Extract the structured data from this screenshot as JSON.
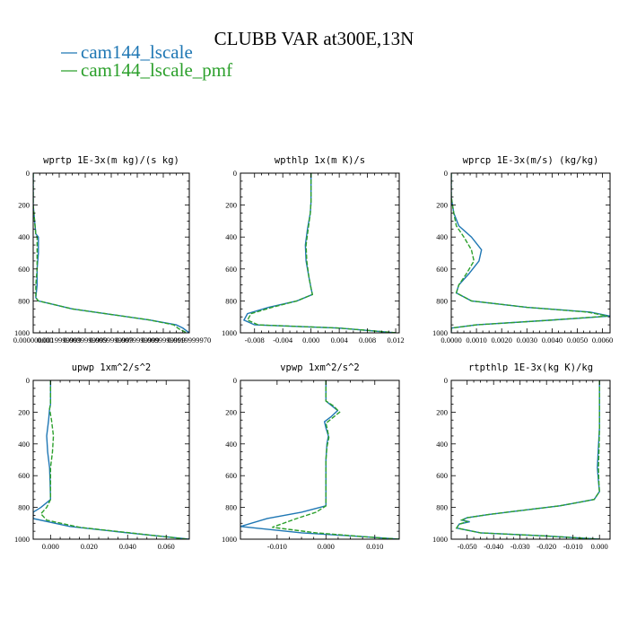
{
  "title": "CLUBB VAR at300E,13N",
  "colors": {
    "series1": "#1f77b4",
    "series2": "#2ca02c"
  },
  "legend": [
    {
      "name": "cam144_lscale",
      "color": "#1f77b4",
      "dash": "solid"
    },
    {
      "name": "cam144_lscale_pmf",
      "color": "#2ca02c",
      "dash": "dashed"
    }
  ],
  "chart_data": [
    {
      "type": "line",
      "title": "wprtp  1E-3x(m kg)/(s kg)",
      "xlim": [
        0,
        0.012
      ],
      "ylim": [
        0,
        1000
      ],
      "y_inverted": true,
      "xticks": [
        0.0,
        0.002,
        0.004,
        0.006,
        0.008,
        0.01,
        0.012
      ],
      "xticklabels": [
        "0.000000000",
        "0.0019999999",
        "0.0039999999",
        "0.0059999999",
        "0.0079999999",
        "0.0099999999",
        "0.0119999970"
      ],
      "yticks": [
        0,
        200,
        400,
        600,
        800,
        1000
      ],
      "series": [
        {
          "name": "cam144_lscale",
          "points": [
            [
              0,
              0
            ],
            [
              0,
              200
            ],
            [
              0.0002,
              380
            ],
            [
              0.0004,
              400
            ],
            [
              0.0004,
              500
            ],
            [
              0.0003,
              600
            ],
            [
              0.0003,
              700
            ],
            [
              0.0002,
              780
            ],
            [
              0.0004,
              800
            ],
            [
              0.003,
              850
            ],
            [
              0.006,
              885
            ],
            [
              0.009,
              920
            ],
            [
              0.011,
              950
            ],
            [
              0.0115,
              970
            ],
            [
              0.012,
              1000
            ]
          ]
        },
        {
          "name": "cam144_lscale_pmf",
          "points": [
            [
              0,
              0
            ],
            [
              0,
              200
            ],
            [
              0.0002,
              380
            ],
            [
              0.0003,
              400
            ],
            [
              0.0003,
              500
            ],
            [
              0.0003,
              600
            ],
            [
              0.0002,
              700
            ],
            [
              0.0002,
              780
            ],
            [
              0.0004,
              800
            ],
            [
              0.003,
              850
            ],
            [
              0.006,
              885
            ],
            [
              0.009,
              920
            ],
            [
              0.0108,
              950
            ],
            [
              0.0112,
              975
            ],
            [
              0.0118,
              1000
            ]
          ]
        }
      ]
    },
    {
      "type": "line",
      "title": "wpthlp  1x(m K)/s",
      "xlim": [
        -0.01,
        0.0125
      ],
      "ylim": [
        0,
        1000
      ],
      "y_inverted": true,
      "xticks": [
        -0.008,
        -0.004,
        0.0,
        0.004,
        0.008,
        0.012
      ],
      "xticklabels": [
        "-0.008",
        "-0.004",
        "0.000",
        "0.004",
        "0.008",
        "0.012"
      ],
      "yticks": [
        0,
        200,
        400,
        600,
        800,
        1000
      ],
      "series": [
        {
          "name": "cam144_lscale",
          "points": [
            [
              0,
              0
            ],
            [
              0,
              180
            ],
            [
              -0.0001,
              250
            ],
            [
              -0.0005,
              350
            ],
            [
              -0.0008,
              450
            ],
            [
              -0.0007,
              550
            ],
            [
              -0.0003,
              650
            ],
            [
              0,
              720
            ],
            [
              0.0002,
              760
            ],
            [
              -0.002,
              800
            ],
            [
              -0.006,
              840
            ],
            [
              -0.009,
              880
            ],
            [
              -0.0095,
              920
            ],
            [
              -0.008,
              950
            ],
            [
              0.004,
              970
            ],
            [
              0.012,
              1000
            ]
          ]
        },
        {
          "name": "cam144_lscale_pmf",
          "points": [
            [
              0,
              0
            ],
            [
              0,
              180
            ],
            [
              -0.0001,
              250
            ],
            [
              -0.0004,
              350
            ],
            [
              -0.0007,
              450
            ],
            [
              -0.0006,
              550
            ],
            [
              -0.0003,
              650
            ],
            [
              0,
              720
            ],
            [
              0.0002,
              760
            ],
            [
              -0.002,
              800
            ],
            [
              -0.0055,
              840
            ],
            [
              -0.0085,
              880
            ],
            [
              -0.009,
              920
            ],
            [
              -0.0075,
              950
            ],
            [
              0.004,
              970
            ],
            [
              0.0122,
              1000
            ]
          ]
        }
      ]
    },
    {
      "type": "line",
      "title": "wprcp  1E-3x(m/s) (kg/kg)",
      "xlim": [
        0,
        0.0063
      ],
      "ylim": [
        0,
        1000
      ],
      "y_inverted": true,
      "xticks": [
        0.0,
        0.001,
        0.002,
        0.003,
        0.004,
        0.005,
        0.006
      ],
      "xticklabels": [
        "0.0000",
        "0.0010",
        "0.0020",
        "0.0030",
        "0.0040",
        "0.0050",
        "0.0060"
      ],
      "yticks": [
        0,
        200,
        400,
        600,
        800,
        1000
      ],
      "series": [
        {
          "name": "cam144_lscale",
          "points": [
            [
              0,
              0
            ],
            [
              0,
              150
            ],
            [
              0.0001,
              250
            ],
            [
              0.0003,
              330
            ],
            [
              0.0008,
              400
            ],
            [
              0.0012,
              480
            ],
            [
              0.0011,
              550
            ],
            [
              0.0007,
              630
            ],
            [
              0.0003,
              700
            ],
            [
              0.0002,
              750
            ],
            [
              0.0008,
              800
            ],
            [
              0.003,
              840
            ],
            [
              0.0055,
              870
            ],
            [
              0.0063,
              895
            ],
            [
              0.004,
              920
            ],
            [
              0.001,
              950
            ],
            [
              0,
              970
            ],
            [
              0,
              1000
            ]
          ]
        },
        {
          "name": "cam144_lscale_pmf",
          "points": [
            [
              0,
              0
            ],
            [
              0,
              150
            ],
            [
              0.0001,
              250
            ],
            [
              0.0002,
              330
            ],
            [
              0.0005,
              400
            ],
            [
              0.0008,
              480
            ],
            [
              0.0009,
              550
            ],
            [
              0.0006,
              630
            ],
            [
              0.0003,
              700
            ],
            [
              0.0002,
              750
            ],
            [
              0.0008,
              800
            ],
            [
              0.003,
              840
            ],
            [
              0.0054,
              870
            ],
            [
              0.0062,
              895
            ],
            [
              0.004,
              920
            ],
            [
              0.001,
              950
            ],
            [
              0,
              970
            ],
            [
              0,
              1000
            ]
          ]
        }
      ]
    },
    {
      "type": "line",
      "title": "upwp  1xm^2/s^2",
      "xlim": [
        -0.009,
        0.072
      ],
      "ylim": [
        0,
        1000
      ],
      "y_inverted": true,
      "xticks": [
        0.0,
        0.02,
        0.04,
        0.06
      ],
      "xticklabels": [
        "0.000",
        "0.020",
        "0.040",
        "0.060"
      ],
      "yticks": [
        0,
        200,
        400,
        600,
        800,
        1000
      ],
      "series": [
        {
          "name": "cam144_lscale",
          "points": [
            [
              0,
              0
            ],
            [
              0,
              150
            ],
            [
              -0.0005,
              180
            ],
            [
              -0.001,
              250
            ],
            [
              -0.002,
              350
            ],
            [
              -0.0015,
              450
            ],
            [
              -0.0005,
              550
            ],
            [
              -0.0002,
              650
            ],
            [
              0,
              750
            ],
            [
              -0.005,
              800
            ],
            [
              -0.009,
              830
            ],
            [
              -0.009,
              870
            ],
            [
              0.01,
              920
            ],
            [
              0.04,
              960
            ],
            [
              0.072,
              1000
            ]
          ]
        },
        {
          "name": "cam144_lscale_pmf",
          "points": [
            [
              0,
              0
            ],
            [
              0,
              150
            ],
            [
              -0.0005,
              180
            ],
            [
              0.0005,
              250
            ],
            [
              0.0015,
              350
            ],
            [
              0.001,
              450
            ],
            [
              0,
              550
            ],
            [
              0,
              650
            ],
            [
              0,
              750
            ],
            [
              -0.002,
              800
            ],
            [
              -0.005,
              840
            ],
            [
              -0.002,
              880
            ],
            [
              0.015,
              925
            ],
            [
              0.045,
              965
            ],
            [
              0.071,
              1000
            ]
          ]
        }
      ]
    },
    {
      "type": "line",
      "title": "vpwp  1xm^2/s^2",
      "xlim": [
        -0.0175,
        0.015
      ],
      "ylim": [
        0,
        1000
      ],
      "y_inverted": true,
      "xticks": [
        -0.01,
        0.0,
        0.01
      ],
      "xticklabels": [
        "-0.010",
        "0.000",
        "0.010"
      ],
      "yticks": [
        0,
        200,
        400,
        600,
        800,
        1000
      ],
      "series": [
        {
          "name": "cam144_lscale",
          "points": [
            [
              0,
              0
            ],
            [
              0,
              130
            ],
            [
              0.0012,
              160
            ],
            [
              0.0024,
              190
            ],
            [
              0.001,
              230
            ],
            [
              -0.0003,
              260
            ],
            [
              0,
              300
            ],
            [
              0.0005,
              350
            ],
            [
              0.0002,
              400
            ],
            [
              0,
              500
            ],
            [
              0,
              700
            ],
            [
              0,
              790
            ],
            [
              -0.005,
              830
            ],
            [
              -0.012,
              870
            ],
            [
              -0.0175,
              920
            ],
            [
              -0.005,
              960
            ],
            [
              0.008,
              985
            ],
            [
              0.015,
              1000
            ]
          ]
        },
        {
          "name": "cam144_lscale_pmf",
          "points": [
            [
              0,
              0
            ],
            [
              0,
              130
            ],
            [
              0.0015,
              160
            ],
            [
              0.0028,
              200
            ],
            [
              0.0012,
              240
            ],
            [
              0,
              270
            ],
            [
              0.0003,
              310
            ],
            [
              0.0006,
              360
            ],
            [
              0.0002,
              420
            ],
            [
              0,
              500
            ],
            [
              0,
              700
            ],
            [
              0,
              790
            ],
            [
              -0.002,
              830
            ],
            [
              -0.006,
              870
            ],
            [
              -0.011,
              925
            ],
            [
              -0.002,
              960
            ],
            [
              0.008,
              985
            ],
            [
              0.015,
              1000
            ]
          ]
        }
      ]
    },
    {
      "type": "line",
      "title": "rtpthlp  1E-3x(kg K)/kg",
      "xlim": [
        -0.056,
        0.004
      ],
      "ylim": [
        0,
        1000
      ],
      "y_inverted": true,
      "xticks": [
        -0.05,
        -0.04,
        -0.03,
        -0.02,
        -0.01,
        0.0
      ],
      "xticklabels": [
        "-0.050",
        "-0.040",
        "-0.030",
        "-0.020",
        "-0.010",
        "0.000"
      ],
      "yticks": [
        0,
        200,
        400,
        600,
        800,
        1000
      ],
      "series": [
        {
          "name": "cam144_lscale",
          "points": [
            [
              0,
              0
            ],
            [
              0,
              150
            ],
            [
              0,
              300
            ],
            [
              -0.0005,
              450
            ],
            [
              -0.0008,
              550
            ],
            [
              -0.0003,
              650
            ],
            [
              0,
              700
            ],
            [
              -0.002,
              750
            ],
            [
              -0.015,
              790
            ],
            [
              -0.03,
              820
            ],
            [
              -0.042,
              845
            ],
            [
              -0.05,
              865
            ],
            [
              -0.052,
              880
            ],
            [
              -0.049,
              890
            ],
            [
              -0.053,
              905
            ],
            [
              -0.054,
              930
            ],
            [
              -0.045,
              960
            ],
            [
              -0.02,
              980
            ],
            [
              0,
              1000
            ]
          ]
        },
        {
          "name": "cam144_lscale_pmf",
          "points": [
            [
              0,
              0
            ],
            [
              0,
              150
            ],
            [
              0,
              300
            ],
            [
              -0.0002,
              450
            ],
            [
              -0.0004,
              550
            ],
            [
              -0.0002,
              650
            ],
            [
              0,
              700
            ],
            [
              -0.002,
              750
            ],
            [
              -0.015,
              790
            ],
            [
              -0.03,
              820
            ],
            [
              -0.042,
              845
            ],
            [
              -0.05,
              865
            ],
            [
              -0.052,
              880
            ],
            [
              -0.05,
              890
            ],
            [
              -0.053,
              905
            ],
            [
              -0.054,
              930
            ],
            [
              -0.045,
              960
            ],
            [
              -0.02,
              980
            ],
            [
              0,
              1000
            ]
          ]
        }
      ]
    }
  ]
}
